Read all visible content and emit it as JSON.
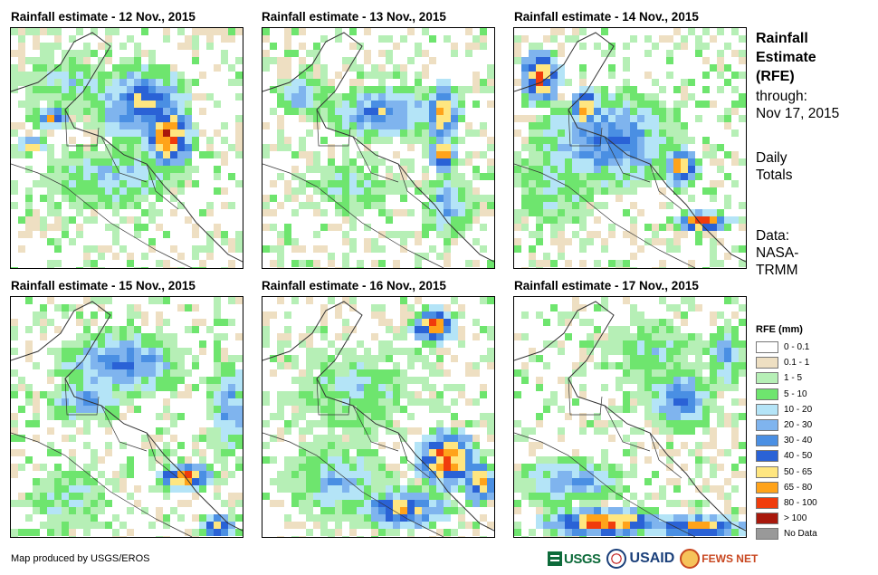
{
  "panels": [
    {
      "title": "Rainfall estimate - 12 Nov., 2015"
    },
    {
      "title": "Rainfall estimate - 13 Nov., 2015"
    },
    {
      "title": "Rainfall estimate - 14 Nov., 2015"
    },
    {
      "title": "Rainfall estimate - 15 Nov., 2015"
    },
    {
      "title": "Rainfall estimate - 16 Nov., 2015"
    },
    {
      "title": "Rainfall estimate - 17 Nov., 2015"
    }
  ],
  "sidebar": {
    "title_lines": [
      "Rainfall",
      "Estimate",
      "(RFE)"
    ],
    "through_label": "through:",
    "through_date": "Nov 17, 2015",
    "totals_lines": [
      "Daily",
      "Totals"
    ],
    "data_lines": [
      "Data:",
      "NASA-",
      "TRMM"
    ]
  },
  "legend": {
    "title": "RFE (mm)",
    "items": [
      {
        "label": "0 - 0.1",
        "color": "#ffffff"
      },
      {
        "label": "0.1 - 1",
        "color": "#eedfc2"
      },
      {
        "label": "1 - 5",
        "color": "#b6efb6"
      },
      {
        "label": "5 - 10",
        "color": "#6ee56e"
      },
      {
        "label": "10 - 20",
        "color": "#b4e4f7"
      },
      {
        "label": "20 - 30",
        "color": "#7fb4ee"
      },
      {
        "label": "30 - 40",
        "color": "#4a8fe3"
      },
      {
        "label": "40 - 50",
        "color": "#2a62d6"
      },
      {
        "label": "50 - 65",
        "color": "#ffe680"
      },
      {
        "label": "65 - 80",
        "color": "#ffa31a"
      },
      {
        "label": "80 - 100",
        "color": "#f03c0c"
      },
      {
        "label": "> 100",
        "color": "#a8180c"
      },
      {
        "label": "No Data",
        "color": "#999999"
      }
    ]
  },
  "credit": "Map produced by USGS/EROS",
  "logos": {
    "usgs": "USGS",
    "usaid": "USAID",
    "fews": "FEWS NET"
  }
}
